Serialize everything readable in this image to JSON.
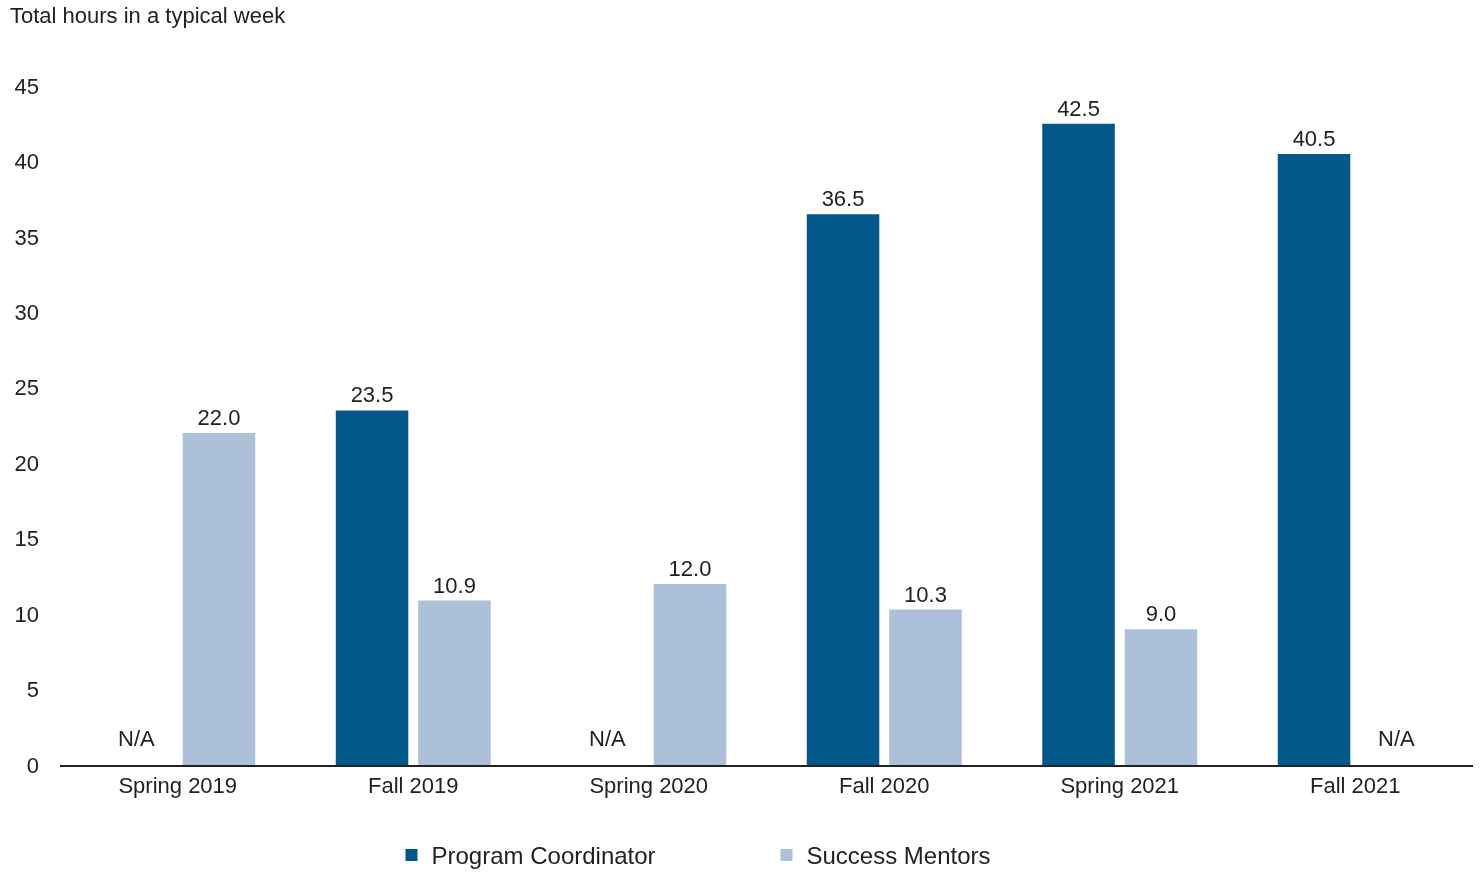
{
  "chart_data": {
    "type": "bar",
    "title": "Total hours in a typical week",
    "categories": [
      "Spring 2019",
      "Fall 2019",
      "Spring 2020",
      "Fall 2020",
      "Spring 2021",
      "Fall 2021"
    ],
    "series": [
      {
        "name": "Program Coordinator",
        "color": "#02578b",
        "values": [
          null,
          23.5,
          null,
          36.5,
          42.5,
          40.5
        ],
        "value_labels": [
          "N/A",
          "23.5",
          "N/A",
          "36.5",
          "42.5",
          "40.5"
        ]
      },
      {
        "name": "Success Mentors",
        "color": "#adc0d9",
        "values": [
          22.0,
          10.9,
          12.0,
          10.3,
          9.0,
          null
        ],
        "value_labels": [
          "22.0",
          "10.9",
          "12.0",
          "10.3",
          "9.0",
          "N/A"
        ]
      }
    ],
    "ylim": [
      0,
      45
    ],
    "yticks": [
      0,
      5,
      10,
      15,
      20,
      25,
      30,
      35,
      40,
      45
    ],
    "grid": false,
    "legend": "bottom"
  }
}
